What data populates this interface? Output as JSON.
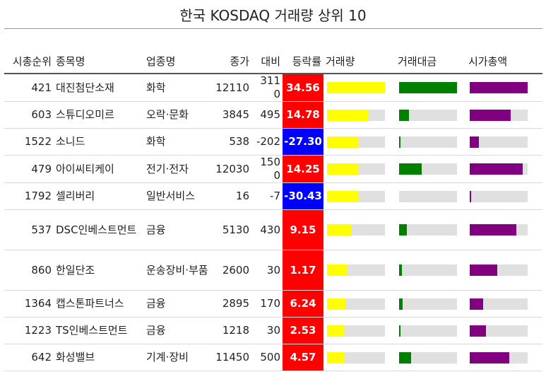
{
  "title": "한국 KOSDAQ 거래량 상위 10",
  "headers": {
    "rank": "시총순위",
    "name": "종목명",
    "sector": "업종명",
    "close": "종가",
    "change": "대비",
    "rate": "등락률",
    "volume": "거래량",
    "amount": "거래대금",
    "marketcap": "시가총액"
  },
  "colors": {
    "up": "#ff0000",
    "down": "#0000ff",
    "volume_bar": "#ffff00",
    "amount_bar": "#008000",
    "marketcap_bar": "#800080",
    "bar_track": "#e0e0e0"
  },
  "rows": [
    {
      "rank": "421",
      "name": "대진첨단소재",
      "sector": "화학",
      "close": "12110",
      "change": "3110",
      "rate": "34.56",
      "dir": "up",
      "volume": 1.0,
      "amount": 1.0,
      "marketcap": 1.0
    },
    {
      "rank": "603",
      "name": "스튜디오미르",
      "sector": "오락·문화",
      "close": "3845",
      "change": "495",
      "rate": "14.78",
      "dir": "up",
      "volume": 0.72,
      "amount": 0.17,
      "marketcap": 0.71
    },
    {
      "rank": "1522",
      "name": "소니드",
      "sector": "화학",
      "close": "538",
      "change": "-202",
      "rate": "-27.30",
      "dir": "down",
      "volume": 0.55,
      "amount": 0.02,
      "marketcap": 0.16
    },
    {
      "rank": "479",
      "name": "아이씨티케이",
      "sector": "전기·전자",
      "close": "12030",
      "change": "1500",
      "rate": "14.25",
      "dir": "up",
      "volume": 0.55,
      "amount": 0.39,
      "marketcap": 0.91
    },
    {
      "rank": "1792",
      "name": "셀리버리",
      "sector": "일반서비스",
      "close": "16",
      "change": "-7",
      "rate": "-30.43",
      "dir": "down",
      "volume": 0.54,
      "amount": 0.0,
      "marketcap": 0.02
    },
    {
      "rank": "537",
      "name": "DSC인베스트먼트",
      "sector": "금융",
      "close": "5130",
      "change": "430",
      "rate": "9.15",
      "dir": "up",
      "volume": 0.43,
      "amount": 0.13,
      "marketcap": 0.81
    },
    {
      "rank": "860",
      "name": "한일단조",
      "sector": "운송장비·부품",
      "close": "2600",
      "change": "30",
      "rate": "1.17",
      "dir": "up",
      "volume": 0.34,
      "amount": 0.05,
      "marketcap": 0.48
    },
    {
      "rank": "1364",
      "name": "캡스톤파트너스",
      "sector": "금융",
      "close": "2895",
      "change": "170",
      "rate": "6.24",
      "dir": "up",
      "volume": 0.32,
      "amount": 0.06,
      "marketcap": 0.23
    },
    {
      "rank": "1223",
      "name": "TS인베스트먼트",
      "sector": "금융",
      "close": "1218",
      "change": "30",
      "rate": "2.53",
      "dir": "up",
      "volume": 0.29,
      "amount": 0.02,
      "marketcap": 0.28
    },
    {
      "rank": "642",
      "name": "화성밸브",
      "sector": "기계·장비",
      "close": "11450",
      "change": "500",
      "rate": "4.57",
      "dir": "up",
      "volume": 0.29,
      "amount": 0.21,
      "marketcap": 0.68
    }
  ]
}
